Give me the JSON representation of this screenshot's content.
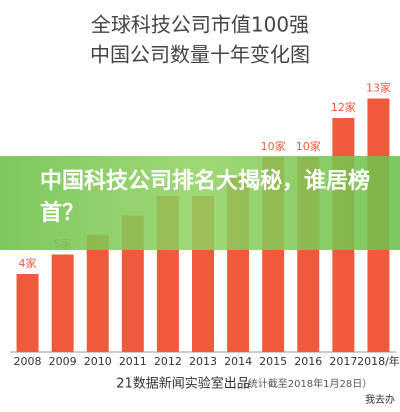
{
  "chart_data": {
    "type": "bar",
    "title": "全球科技公司市值100强",
    "subtitle": "中国公司数量十年变化图",
    "categories": [
      "2008",
      "2009",
      "2010",
      "2011",
      "2012",
      "2013",
      "2014",
      "2015",
      "2016",
      "2017",
      "2018/年"
    ],
    "values": [
      4,
      5,
      6,
      7,
      8,
      8,
      9,
      10,
      10,
      12,
      13
    ],
    "value_labels": [
      "4家",
      "5家",
      null,
      null,
      null,
      null,
      null,
      "10家",
      "10家",
      "12家",
      "13家"
    ],
    "color": "#f05a3c",
    "ylim": [
      0,
      14
    ],
    "source": "21数据新闻实验室出品",
    "note": "（统计截至2018年1月28日）"
  },
  "banner": {
    "headline": "中国科技公司排名大揭秘，谁居榜首？"
  },
  "watermark": "我去办"
}
